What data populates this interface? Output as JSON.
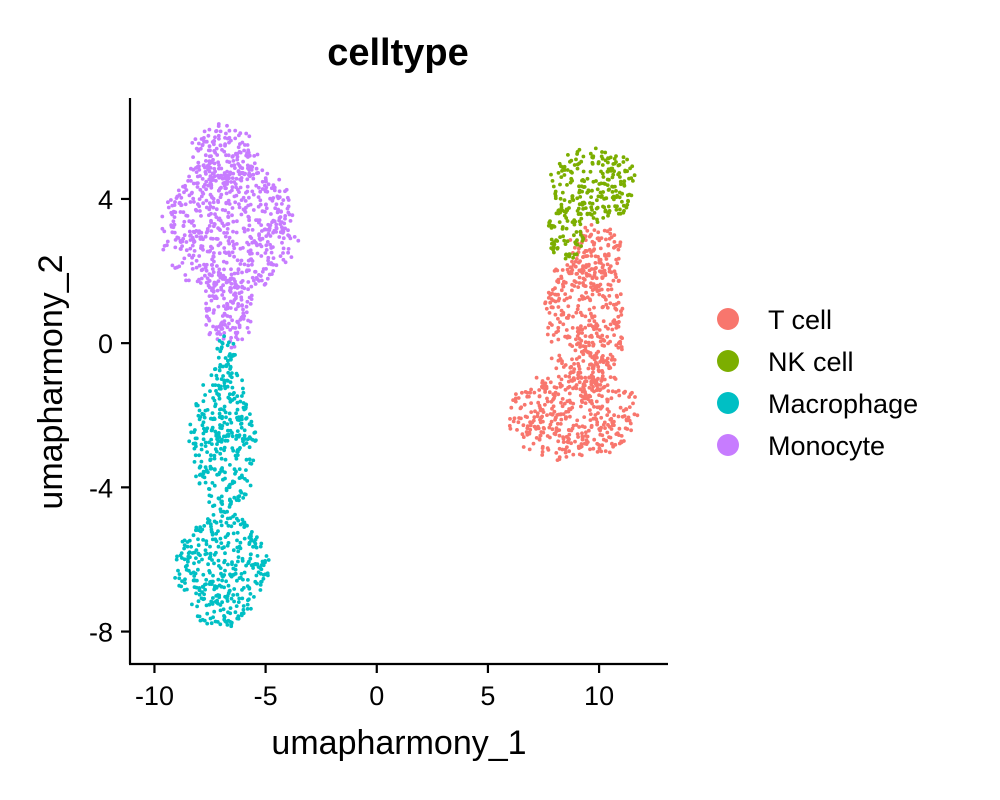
{
  "chart_data": {
    "type": "scatter",
    "title": "celltype",
    "xlabel": "umapharmony_1",
    "ylabel": "umapharmony_2",
    "xlim": [
      -11.1,
      13.1
    ],
    "ylim": [
      -8.9,
      6.8
    ],
    "x_ticks": [
      -10,
      -5,
      0,
      5,
      10
    ],
    "y_ticks": [
      -8,
      -4,
      0,
      4
    ],
    "x_tick_labels": [
      "-10",
      "-5",
      "0",
      "5",
      "10"
    ],
    "y_tick_labels": [
      "-8",
      "-4",
      "0",
      "4"
    ],
    "grid": false,
    "legend_position": "right",
    "series": [
      {
        "name": "T cell",
        "color": "#F8766D",
        "regions": [
          {
            "center": [
              8.8,
              -2.0
            ],
            "radius": [
              3.1,
              1.3
            ]
          },
          {
            "center": [
              9.4,
              0.6
            ],
            "radius": [
              1.9,
              2.2
            ]
          },
          {
            "center": [
              9.8,
              2.5
            ],
            "radius": [
              1.3,
              0.8
            ]
          }
        ]
      },
      {
        "name": "NK cell",
        "color": "#7CAE00",
        "regions": [
          {
            "center": [
              9.8,
              4.4
            ],
            "radius": [
              2.1,
              1.1
            ]
          },
          {
            "center": [
              8.5,
              3.0
            ],
            "radius": [
              0.9,
              0.8
            ]
          }
        ]
      },
      {
        "name": "Macrophage",
        "color": "#00BFC4",
        "regions": [
          {
            "center": [
              -6.9,
              -2.7
            ],
            "radius": [
              1.6,
              2.1
            ]
          },
          {
            "center": [
              -7.0,
              -6.3
            ],
            "radius": [
              2.2,
              1.7
            ]
          },
          {
            "center": [
              -6.8,
              -0.3
            ],
            "radius": [
              0.5,
              0.6
            ]
          }
        ]
      },
      {
        "name": "Monocyte",
        "color": "#C77CFF",
        "regions": [
          {
            "center": [
              -6.6,
              3.2
            ],
            "radius": [
              3.2,
              2.0
            ]
          },
          {
            "center": [
              -6.9,
              5.2
            ],
            "radius": [
              1.6,
              0.9
            ]
          },
          {
            "center": [
              -6.7,
              0.9
            ],
            "radius": [
              1.3,
              1.1
            ]
          }
        ]
      }
    ]
  }
}
